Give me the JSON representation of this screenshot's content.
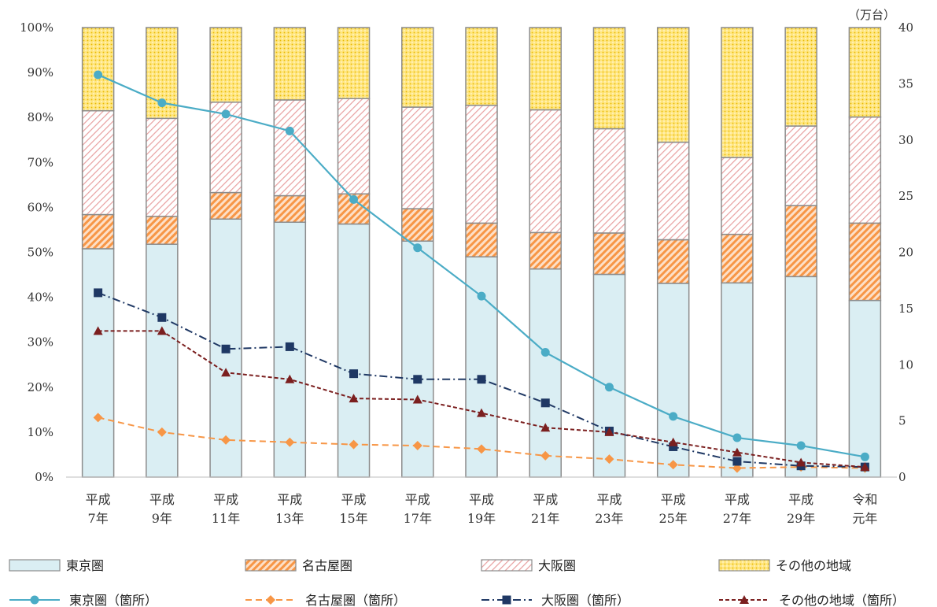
{
  "chart_data": {
    "type": "bar",
    "categories": [
      [
        "平成",
        "7年"
      ],
      [
        "平成",
        "9年"
      ],
      [
        "平成",
        "11年"
      ],
      [
        "平成",
        "13年"
      ],
      [
        "平成",
        "15年"
      ],
      [
        "平成",
        "17年"
      ],
      [
        "平成",
        "19年"
      ],
      [
        "平成",
        "21年"
      ],
      [
        "平成",
        "23年"
      ],
      [
        "平成",
        "25年"
      ],
      [
        "平成",
        "27年"
      ],
      [
        "平成",
        "29年"
      ],
      [
        "令和",
        "元年"
      ]
    ],
    "stacked_series": [
      {
        "name": "東京圏",
        "color": "#DAEEF3",
        "pattern": "solid",
        "values": [
          50.8,
          51.8,
          57.4,
          56.7,
          56.3,
          52.5,
          49.0,
          46.3,
          45.1,
          43.1,
          43.2,
          44.6,
          39.3
        ]
      },
      {
        "name": "名古屋圏",
        "color": "#F79646",
        "pattern": "diagonal-dense",
        "values": [
          7.6,
          6.2,
          5.9,
          5.9,
          6.7,
          7.2,
          7.5,
          8.1,
          9.2,
          9.7,
          10.8,
          15.8,
          17.2
        ]
      },
      {
        "name": "大阪圏",
        "color": "#F2B8B8",
        "pattern": "diagonal-light",
        "values": [
          23.1,
          21.8,
          20.1,
          21.3,
          21.2,
          22.6,
          26.2,
          27.3,
          23.2,
          21.7,
          17.1,
          17.7,
          23.6
        ]
      },
      {
        "name": "その他の地域",
        "color": "#FFD966",
        "pattern": "dots",
        "values": [
          18.5,
          20.2,
          16.6,
          16.1,
          15.8,
          17.7,
          17.3,
          18.3,
          22.5,
          25.5,
          28.9,
          21.9,
          19.9
        ]
      }
    ],
    "line_series": [
      {
        "name": "東京圏（箇所）",
        "color": "#4BACC6",
        "dash": "solid",
        "marker": "circle",
        "values": [
          35.8,
          33.3,
          32.3,
          30.8,
          24.7,
          20.4,
          16.1,
          11.1,
          8.0,
          5.4,
          3.5,
          2.8,
          1.8
        ]
      },
      {
        "name": "名古屋圏（箇所）",
        "color": "#F79646",
        "dash": "dash",
        "marker": "diamond",
        "values": [
          5.3,
          4.0,
          3.3,
          3.1,
          2.9,
          2.8,
          2.5,
          1.9,
          1.6,
          1.1,
          0.8,
          0.9,
          0.8
        ]
      },
      {
        "name": "大阪圏（箇所）",
        "color": "#1F3864",
        "dash": "dashdot",
        "marker": "square",
        "values": [
          16.4,
          14.2,
          11.4,
          11.6,
          9.2,
          8.7,
          8.7,
          6.6,
          4.1,
          2.7,
          1.4,
          1.0,
          0.9
        ]
      },
      {
        "name": "その他の地域（箇所）",
        "color": "#7B1F1F",
        "dash": "dash-short",
        "marker": "triangle",
        "values": [
          13.0,
          13.0,
          9.3,
          8.7,
          7.0,
          6.9,
          5.7,
          4.4,
          4.0,
          3.1,
          2.2,
          1.3,
          0.9
        ]
      }
    ],
    "y_left": {
      "min": 0,
      "max": 100,
      "step": 10,
      "unit": "%"
    },
    "y_right": {
      "min": 0,
      "max": 40,
      "step": 5,
      "label": "（万台）"
    },
    "grid": false,
    "legend_position": "bottom"
  }
}
